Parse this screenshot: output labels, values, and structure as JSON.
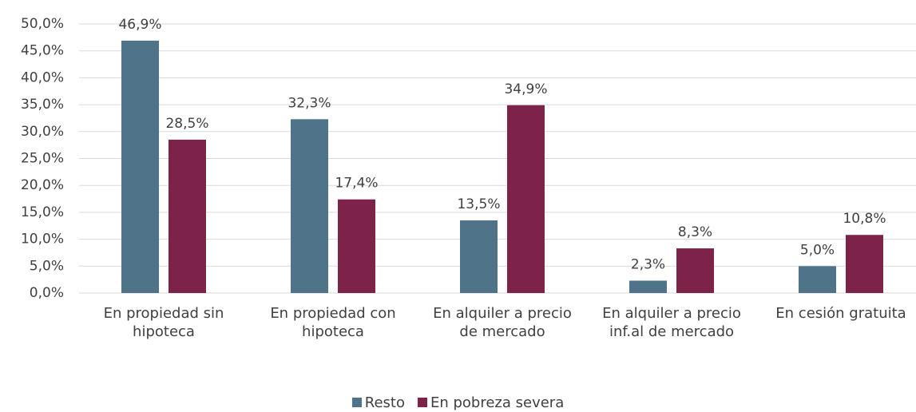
{
  "chart_data": {
    "type": "bar",
    "categories": [
      "En propiedad sin hipoteca",
      "En propiedad con hipoteca",
      "En alquiler  a precio de mercado",
      "En alquiler a precio inf.al de mercado",
      "En cesión gratuita"
    ],
    "series": [
      {
        "name": "Resto",
        "color": "#4f7489",
        "values": [
          46.9,
          32.3,
          13.5,
          2.3,
          5.0
        ],
        "value_labels": [
          "46,9%",
          "32,3%",
          "13,5%",
          "2,3%",
          "5,0%"
        ]
      },
      {
        "name": "En pobreza severa",
        "color": "#7d2248",
        "values": [
          28.5,
          17.4,
          34.9,
          8.3,
          10.8
        ],
        "value_labels": [
          "28,5%",
          "17,4%",
          "34,9%",
          "8,3%",
          "10,8%"
        ]
      }
    ],
    "ylim": [
      0,
      50
    ],
    "yticks": [
      {
        "value": 0,
        "label": "0,0%"
      },
      {
        "value": 5,
        "label": "5,0%"
      },
      {
        "value": 10,
        "label": "10,0%"
      },
      {
        "value": 15,
        "label": "15,0%"
      },
      {
        "value": 20,
        "label": "20,0%"
      },
      {
        "value": 25,
        "label": "25,0%"
      },
      {
        "value": 30,
        "label": "30,0%"
      },
      {
        "value": 35,
        "label": "35,0%"
      },
      {
        "value": 40,
        "label": "40,0%"
      },
      {
        "value": 45,
        "label": "45,0%"
      },
      {
        "value": 50,
        "label": "50,0%"
      }
    ],
    "grid": true,
    "legend": "bottom"
  }
}
